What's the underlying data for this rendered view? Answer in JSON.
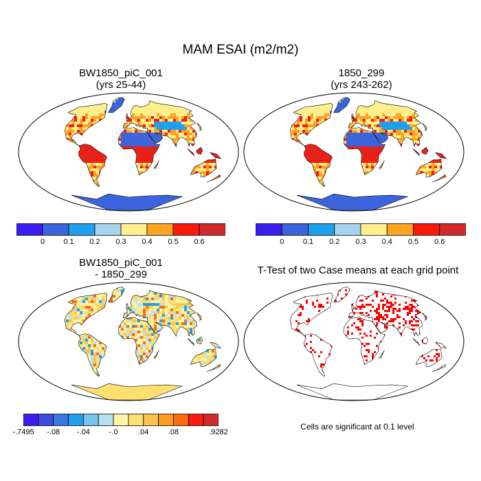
{
  "figure": {
    "title": "MAM ESAI (m2/m2)",
    "panels": [
      {
        "title_line1": "BW1850_piC_001",
        "title_line2": "(yrs 25-44)"
      },
      {
        "title_line1": "1850_299",
        "title_line2": "(yrs 243-262)"
      },
      {
        "title_line1": "BW1850_piC_001",
        "title_line2": "- 1850_299"
      },
      {
        "title_line1": "T-Test of two Case means at each grid point",
        "title_line2": ""
      }
    ],
    "note": "Cells are significant at 0.1 level"
  },
  "colorbar_abs": {
    "colors": [
      "#3a1cf0",
      "#3c64dc",
      "#1fa0ec",
      "#a6d4ec",
      "#fdf08c",
      "#fca31f",
      "#fa1a0c",
      "#d22a2a"
    ],
    "labels": [
      "0",
      "0.1",
      "0.2",
      "0.3",
      "0.4",
      "0.5",
      "0.6"
    ]
  },
  "colorbar_diff": {
    "colors": [
      "#3a1cf0",
      "#3c4cdc",
      "#3c78e0",
      "#1fa0ec",
      "#7cc4ec",
      "#b8e0f0",
      "#fdf4a8",
      "#fde070",
      "#fcc44c",
      "#fc9a24",
      "#fc6c10",
      "#fa1a0c",
      "#d22a2a"
    ],
    "labels": [
      "-.7495",
      "-.08",
      "-.04",
      "-.0",
      ".04",
      ".08",
      ".9282"
    ]
  },
  "legend_colors": {
    "ocean": "#ffffff",
    "ttest_significant": "#ff0000",
    "coast": "#000000"
  }
}
